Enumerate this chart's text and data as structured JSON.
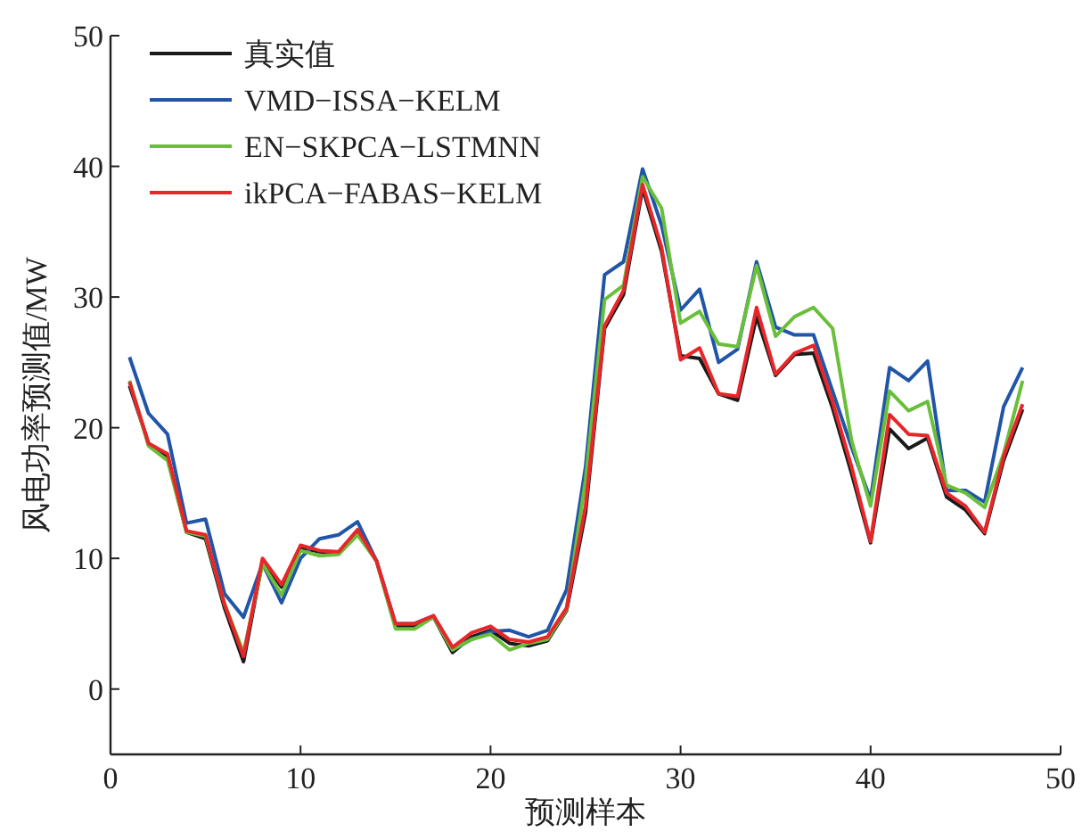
{
  "chart_data": {
    "type": "line",
    "xlabel": "预测样本",
    "ylabel": "风电功率预测值/MW",
    "x": [
      1,
      2,
      3,
      4,
      5,
      6,
      7,
      8,
      9,
      10,
      11,
      12,
      13,
      14,
      15,
      16,
      17,
      18,
      19,
      20,
      21,
      22,
      23,
      24,
      25,
      26,
      27,
      28,
      29,
      30,
      31,
      32,
      33,
      34,
      35,
      36,
      37,
      38,
      39,
      40,
      41,
      42,
      43,
      44,
      45,
      46,
      47,
      48
    ],
    "series": [
      {
        "name": "真实值",
        "color": "#1a1a1a",
        "values": [
          23.2,
          18.8,
          17.8,
          12,
          11.5,
          6.2,
          2.1,
          9.8,
          7.8,
          10.8,
          10.5,
          10.4,
          12,
          9.8,
          4.8,
          4.8,
          5.5,
          2.8,
          4,
          4.5,
          3.5,
          3.3,
          3.7,
          6,
          13.5,
          27.6,
          30.2,
          38.3,
          33.5,
          25.5,
          25.3,
          22.6,
          22.1,
          28.5,
          24,
          25.6,
          25.7,
          21.5,
          16.5,
          11.2,
          19.9,
          18.4,
          19.2,
          14.7,
          13.7,
          11.9,
          17.5,
          21.4
        ]
      },
      {
        "name": "VMD−ISSA−KELM",
        "color": "#2155a8",
        "values": [
          25.4,
          21.1,
          19.5,
          12.7,
          13,
          7.3,
          5.5,
          9.6,
          6.6,
          10,
          11.5,
          11.8,
          12.8,
          9.8,
          5,
          5,
          5.6,
          3,
          3.8,
          4.4,
          4.5,
          4,
          4.5,
          7.6,
          17,
          31.7,
          32.7,
          39.8,
          35.5,
          29,
          30.6,
          25,
          26,
          32.7,
          27.7,
          27.1,
          27.1,
          22.8,
          18.5,
          14.5,
          24.6,
          23.6,
          25.1,
          15.2,
          15.2,
          14.3,
          21.6,
          24.6
        ]
      },
      {
        "name": "EN−SKPCA−LSTMNN",
        "color": "#6abf3a",
        "values": [
          23.6,
          18.6,
          17.5,
          12,
          11.7,
          6.5,
          2.8,
          9.6,
          7.2,
          10.6,
          10.2,
          10.3,
          11.8,
          9.8,
          4.6,
          4.6,
          5.5,
          3,
          3.8,
          4.2,
          3,
          3.5,
          3.8,
          6.1,
          16,
          29.8,
          30.9,
          39.2,
          36.8,
          28,
          28.9,
          26.4,
          26.2,
          32.4,
          27,
          28.5,
          29.2,
          27.6,
          19,
          14,
          22.8,
          21.3,
          22,
          15.6,
          15,
          13.9,
          18,
          23.6
        ]
      },
      {
        "name": "ikPCA−FABAS−KELM",
        "color": "#e8262a",
        "values": [
          23.5,
          18.8,
          18,
          12.1,
          11.8,
          6.5,
          2.5,
          10,
          8,
          11,
          10.6,
          10.5,
          12.2,
          9.8,
          5,
          5,
          5.6,
          3.2,
          4.3,
          4.8,
          3.8,
          3.6,
          4,
          6.2,
          14,
          27.8,
          30.5,
          38.6,
          33.8,
          25.2,
          26.1,
          22.6,
          22.4,
          29.2,
          24.1,
          25.7,
          26.3,
          22,
          17,
          11.3,
          21,
          19.5,
          19.4,
          15,
          14,
          12,
          17.8,
          21.8
        ]
      }
    ],
    "xlim": [
      0,
      50
    ],
    "ylim": [
      -5,
      50
    ],
    "xticks": [
      0,
      10,
      20,
      30,
      40,
      50
    ],
    "yticks": [
      0,
      10,
      20,
      30,
      40,
      50
    ],
    "grid": false,
    "legend": "top left"
  }
}
